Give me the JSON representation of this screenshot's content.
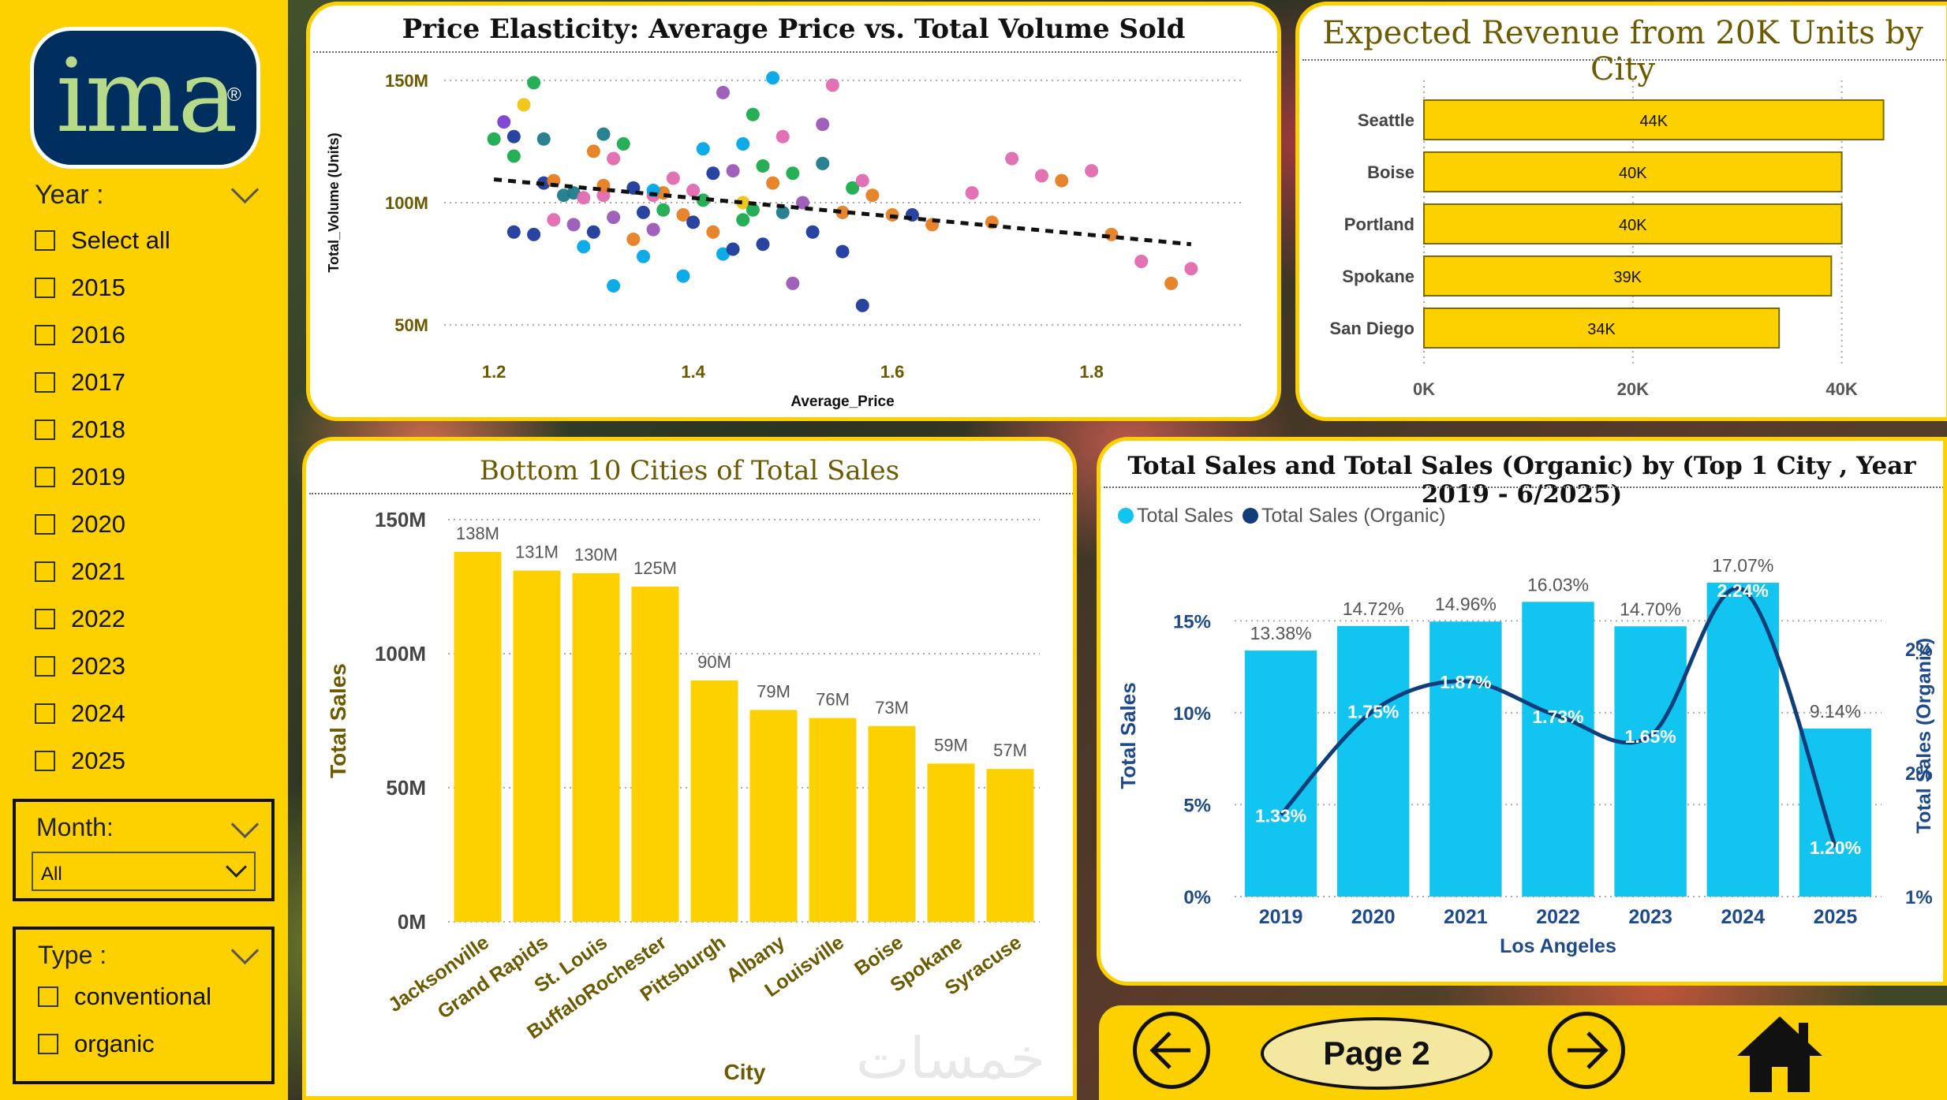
{
  "logo": {
    "text": "ima",
    "reg": "®"
  },
  "year_slicer": {
    "title": "Year :",
    "items": [
      "Select all",
      "2015",
      "2016",
      "2017",
      "2018",
      "2019",
      "2020",
      "2021",
      "2022",
      "2023",
      "2024",
      "2025"
    ]
  },
  "month_slicer": {
    "title": "Month:",
    "value": "All"
  },
  "type_slicer": {
    "title": "Type :",
    "items": [
      "conventional",
      "organic"
    ]
  },
  "scatter": {
    "title": "Price Elasticity: Average Price vs. Total Volume Sold",
    "chart_data": {
      "type": "scatter",
      "xlabel": "Average_Price",
      "ylabel": "Total_Volume (Units)",
      "xlim": [
        1.15,
        1.95
      ],
      "ylim": [
        42,
        158
      ],
      "x_ticks": [
        1.2,
        1.4,
        1.6,
        1.8
      ],
      "y_ticks": [
        {
          "v": 50,
          "label": "50M"
        },
        {
          "v": 100,
          "label": "100M"
        },
        {
          "v": 150,
          "label": "150M"
        }
      ],
      "trend": {
        "x": [
          1.2,
          1.9
        ],
        "y": [
          109.5,
          83
        ]
      },
      "points": [
        [
          1.2,
          126,
          "#1aab4e"
        ],
        [
          1.21,
          133,
          "#7a3fd1"
        ],
        [
          1.22,
          119,
          "#1aab4e"
        ],
        [
          1.22,
          127,
          "#1d3a9b"
        ],
        [
          1.22,
          88,
          "#1d3a9b"
        ],
        [
          1.23,
          140,
          "#f1c40f"
        ],
        [
          1.24,
          149,
          "#1aab4e"
        ],
        [
          1.24,
          87,
          "#1d3a9b"
        ],
        [
          1.25,
          108,
          "#1d3a9b"
        ],
        [
          1.25,
          126,
          "#1f7a8a"
        ],
        [
          1.26,
          93,
          "#e06aaf"
        ],
        [
          1.27,
          103,
          "#1f7a8a"
        ],
        [
          1.28,
          104,
          "#1f7a8a"
        ],
        [
          1.28,
          91,
          "#9b59b6"
        ],
        [
          1.29,
          102,
          "#e06aaf"
        ],
        [
          1.3,
          121,
          "#e67e22"
        ],
        [
          1.3,
          88,
          "#1d3a9b"
        ],
        [
          1.31,
          103,
          "#e06aaf"
        ],
        [
          1.31,
          128,
          "#1f7a8a"
        ],
        [
          1.31,
          107,
          "#e67e22"
        ],
        [
          1.32,
          118,
          "#e06aaf"
        ],
        [
          1.32,
          66,
          "#00a8e8"
        ],
        [
          1.32,
          94,
          "#9b59b6"
        ],
        [
          1.33,
          124,
          "#1aab4e"
        ],
        [
          1.34,
          106,
          "#1d3a9b"
        ],
        [
          1.34,
          85,
          "#e67e22"
        ],
        [
          1.35,
          96,
          "#1d3a9b"
        ],
        [
          1.35,
          78,
          "#00a8e8"
        ],
        [
          1.36,
          103,
          "#e06aaf"
        ],
        [
          1.36,
          89,
          "#9b59b6"
        ],
        [
          1.37,
          104,
          "#e67e22"
        ],
        [
          1.37,
          97,
          "#1aab4e"
        ],
        [
          1.38,
          110,
          "#e06aaf"
        ],
        [
          1.39,
          95,
          "#e67e22"
        ],
        [
          1.39,
          70,
          "#00a8e8"
        ],
        [
          1.4,
          105,
          "#e06aaf"
        ],
        [
          1.4,
          92,
          "#1d3a9b"
        ],
        [
          1.41,
          122,
          "#00a8e8"
        ],
        [
          1.41,
          101,
          "#1aab4e"
        ],
        [
          1.42,
          112,
          "#1d3a9b"
        ],
        [
          1.42,
          88,
          "#e67e22"
        ],
        [
          1.43,
          79,
          "#00a8e8"
        ],
        [
          1.44,
          113,
          "#9b59b6"
        ],
        [
          1.44,
          81,
          "#1d3a9b"
        ],
        [
          1.45,
          124,
          "#00a8e8"
        ],
        [
          1.45,
          100,
          "#f1c40f"
        ],
        [
          1.46,
          97,
          "#1aab4e"
        ],
        [
          1.46,
          136,
          "#1aab4e"
        ],
        [
          1.47,
          83,
          "#1d3a9b"
        ],
        [
          1.47,
          115,
          "#1aab4e"
        ],
        [
          1.48,
          108,
          "#e67e22"
        ],
        [
          1.48,
          151,
          "#00a8e8"
        ],
        [
          1.49,
          96,
          "#1f7a8a"
        ],
        [
          1.49,
          127,
          "#e06aaf"
        ],
        [
          1.5,
          112,
          "#1aab4e"
        ],
        [
          1.5,
          67,
          "#9b59b6"
        ],
        [
          1.51,
          100,
          "#9b59b6"
        ],
        [
          1.52,
          88,
          "#1d3a9b"
        ],
        [
          1.53,
          116,
          "#1f7a8a"
        ],
        [
          1.54,
          148,
          "#e06aaf"
        ],
        [
          1.55,
          96,
          "#e67e22"
        ],
        [
          1.56,
          106,
          "#1aab4e"
        ],
        [
          1.57,
          109,
          "#e06aaf"
        ],
        [
          1.58,
          103,
          "#e67e22"
        ],
        [
          1.6,
          95,
          "#e67e22"
        ],
        [
          1.62,
          95,
          "#1d3a9b"
        ],
        [
          1.64,
          91,
          "#e67e22"
        ],
        [
          1.68,
          104,
          "#e06aaf"
        ],
        [
          1.7,
          92,
          "#e67e22"
        ],
        [
          1.72,
          118,
          "#e06aaf"
        ],
        [
          1.75,
          111,
          "#e06aaf"
        ],
        [
          1.77,
          109,
          "#e67e22"
        ],
        [
          1.8,
          113,
          "#e06aaf"
        ],
        [
          1.82,
          87,
          "#e67e22"
        ],
        [
          1.85,
          76,
          "#e06aaf"
        ],
        [
          1.88,
          67,
          "#e67e22"
        ],
        [
          1.9,
          73,
          "#e06aaf"
        ],
        [
          1.57,
          58,
          "#1d3a9b"
        ],
        [
          1.55,
          80,
          "#1d3a9b"
        ],
        [
          1.45,
          93,
          "#1aab4e"
        ],
        [
          1.43,
          145,
          "#9b59b6"
        ],
        [
          1.36,
          105,
          "#00a8e8"
        ],
        [
          1.29,
          82,
          "#00a8e8"
        ],
        [
          1.26,
          109,
          "#e67e22"
        ],
        [
          1.53,
          132,
          "#9b59b6"
        ]
      ]
    }
  },
  "revenue": {
    "title": "Expected Revenue from 20K Units by City",
    "chart_data": {
      "type": "bar",
      "orientation": "horizontal",
      "categories": [
        "Seattle",
        "Boise",
        "Portland",
        "Spokane",
        "San Diego"
      ],
      "values": [
        44,
        40,
        40,
        39,
        34
      ],
      "value_labels": [
        "44K",
        "40K",
        "40K",
        "39K",
        "34K"
      ],
      "x_ticks": [
        {
          "v": 0,
          "label": "0K"
        },
        {
          "v": 20,
          "label": "20K"
        },
        {
          "v": 40,
          "label": "40K"
        }
      ],
      "xlim": [
        0,
        50
      ]
    }
  },
  "bottom10": {
    "title": "Bottom 10 Cities of Total Sales",
    "chart_data": {
      "type": "bar",
      "xlabel": "City",
      "ylabel": "Total Sales",
      "ylim": [
        0,
        150
      ],
      "categories": [
        "Jacksonville",
        "Grand Rapids",
        "St. Louis",
        "BuffaloRochester",
        "Pittsburgh",
        "Albany",
        "Louisville",
        "Boise",
        "Spokane",
        "Syracuse"
      ],
      "values": [
        138,
        131,
        130,
        125,
        90,
        79,
        76,
        73,
        59,
        57
      ],
      "value_labels": [
        "138M",
        "131M",
        "130M",
        "125M",
        "90M",
        "79M",
        "76M",
        "73M",
        "59M",
        "57M"
      ],
      "y_ticks": [
        {
          "v": 0,
          "label": "0M"
        },
        {
          "v": 50,
          "label": "50M"
        },
        {
          "v": 100,
          "label": "100M"
        },
        {
          "v": 150,
          "label": "150M"
        }
      ]
    }
  },
  "combo": {
    "title": "Total Sales and Total Sales (Organic) by (Top 1 City , Year 2019 - 6/2025)",
    "legend": [
      "Total Sales",
      "Total Sales (Organic)"
    ],
    "chart_data": {
      "type": "bar+line",
      "xlabel": "Los Angeles",
      "ylabel": "Total Sales",
      "y2label": "Total Sales (Organic)",
      "categories": [
        "2019",
        "2020",
        "2021",
        "2022",
        "2023",
        "2024",
        "2025"
      ],
      "series": [
        {
          "name": "Total Sales",
          "values": [
            13.38,
            14.72,
            14.96,
            16.03,
            14.7,
            17.07,
            9.14
          ],
          "labels": [
            "13.38%",
            "14.72%",
            "14.96%",
            "16.03%",
            "14.70%",
            "17.07%",
            "9.14%"
          ]
        },
        {
          "name": "Total Sales (Organic)",
          "values": [
            1.33,
            1.75,
            1.87,
            1.73,
            1.65,
            2.24,
            1.2
          ],
          "labels": [
            "1.33%",
            "1.75%",
            "1.87%",
            "1.73%",
            "1.65%",
            "2.24%",
            "1.20%"
          ]
        }
      ],
      "ylim": [
        0,
        17.5
      ],
      "y2lim": [
        1.0,
        2.3
      ],
      "y_ticks": [
        {
          "v": 0,
          "label": "0%"
        },
        {
          "v": 5,
          "label": "5%"
        },
        {
          "v": 10,
          "label": "10%"
        },
        {
          "v": 15,
          "label": "15%"
        }
      ],
      "y2_ticks": [
        {
          "v": 1.0,
          "label": "1%"
        },
        {
          "v": 1.5,
          "label": "2%"
        },
        {
          "v": 2.0,
          "label": "2%"
        }
      ]
    }
  },
  "colors": {
    "yellow": "#fdd000",
    "cyan": "#12c5f0",
    "navy": "#0f3e7a",
    "olive": "#6b5a00"
  },
  "nav": {
    "page_label": "Page 2"
  },
  "watermark": "خمسات"
}
